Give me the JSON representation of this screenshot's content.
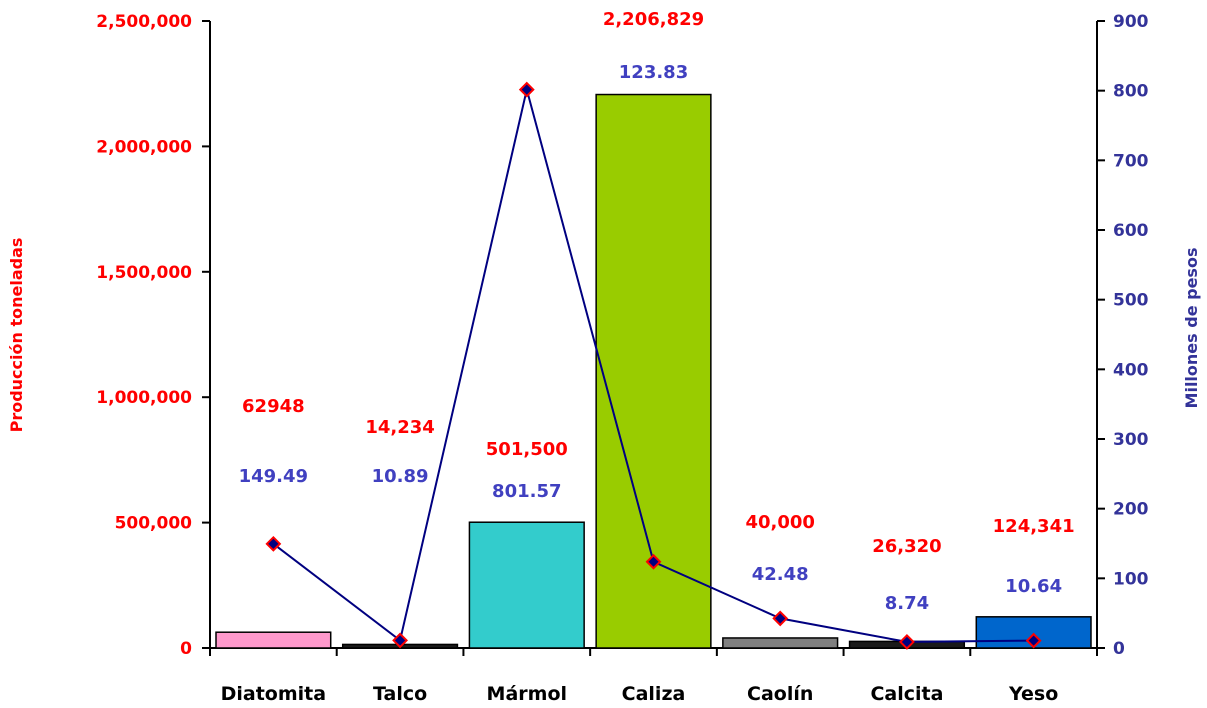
{
  "chart_data": {
    "type": "bar+line",
    "categories": [
      "Diatomita",
      "Talco",
      "Mármol",
      "Caliza",
      "Caolín",
      "Calcita",
      "Yeso"
    ],
    "bar_colors": [
      "#ff99cc",
      "#1a1a1a",
      "#33cccc",
      "#99cc00",
      "#808080",
      "#1a1a1a",
      "#0066cc"
    ],
    "series": [
      {
        "name": "Producción toneladas",
        "axis": "left",
        "kind": "bar",
        "values": [
          62948,
          14234,
          501500,
          2206829,
          40000,
          26320,
          124341
        ],
        "labels": [
          "62948",
          "14,234",
          "501,500",
          "2,206,829",
          "40,000",
          "26,320",
          "124,341"
        ],
        "color": "#ff0000"
      },
      {
        "name": "Millones de pesos",
        "axis": "right",
        "kind": "line",
        "values": [
          149.49,
          10.89,
          801.57,
          123.83,
          42.48,
          8.74,
          10.64
        ],
        "labels": [
          "149.49",
          "10.89",
          "801.57",
          "123.83",
          "42.48",
          "8.74",
          "10.64"
        ],
        "line_color": "#000080",
        "marker_color": "#ff0000"
      }
    ],
    "ylabel_left": "Producción toneladas",
    "ylabel_right": "Millones de pesos",
    "ylim_left": [
      0,
      2500000
    ],
    "ylim_right": [
      0,
      900
    ],
    "yticks_left": [
      "0",
      "500,000",
      "1,000,000",
      "1,500,000",
      "2,000,000",
      "2,500,000"
    ],
    "yticks_right": [
      "0",
      "100",
      "200",
      "300",
      "400",
      "500",
      "600",
      "700",
      "800",
      "900"
    ],
    "grid": false
  }
}
